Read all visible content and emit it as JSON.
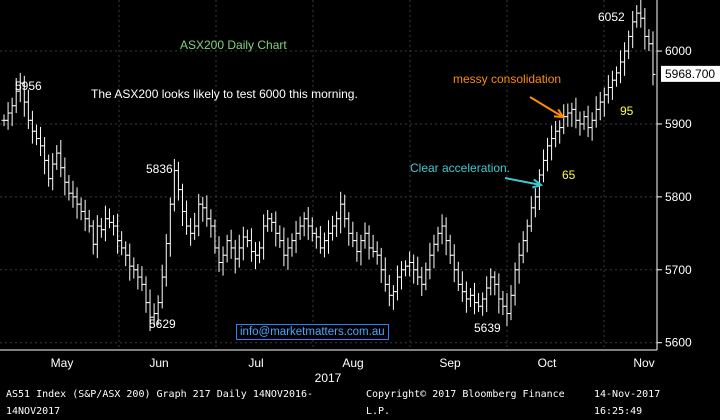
{
  "chart_data": {
    "type": "ohlc",
    "title": "ASX200 Daily Chart",
    "year_label": "2017",
    "ylim": [
      5590,
      6070
    ],
    "yticks": [
      5600,
      5700,
      5800,
      5900,
      6000
    ],
    "xticks": [
      "May",
      "Jun",
      "Jul",
      "Aug",
      "Sep",
      "Oct",
      "Nov"
    ],
    "last_price": "5968.700",
    "closes": [
      5905,
      5915,
      5925,
      5945,
      5956,
      5930,
      5905,
      5890,
      5880,
      5870,
      5850,
      5825,
      5845,
      5860,
      5840,
      5820,
      5805,
      5800,
      5790,
      5780,
      5770,
      5760,
      5735,
      5760,
      5755,
      5770,
      5765,
      5760,
      5740,
      5730,
      5720,
      5705,
      5700,
      5690,
      5680,
      5655,
      5635,
      5640,
      5655,
      5690,
      5736,
      5790,
      5836,
      5810,
      5780,
      5760,
      5750,
      5760,
      5790,
      5785,
      5770,
      5760,
      5730,
      5710,
      5720,
      5740,
      5730,
      5715,
      5730,
      5745,
      5740,
      5725,
      5720,
      5730,
      5760,
      5770,
      5765,
      5750,
      5740,
      5720,
      5730,
      5740,
      5750,
      5760,
      5770,
      5760,
      5750,
      5745,
      5730,
      5740,
      5750,
      5760,
      5770,
      5790,
      5770,
      5750,
      5740,
      5725,
      5740,
      5750,
      5730,
      5725,
      5720,
      5700,
      5680,
      5665,
      5670,
      5690,
      5700,
      5705,
      5710,
      5700,
      5690,
      5680,
      5700,
      5720,
      5735,
      5750,
      5760,
      5740,
      5720,
      5700,
      5680,
      5670,
      5660,
      5665,
      5655,
      5650,
      5660,
      5675,
      5690,
      5680,
      5660,
      5650,
      5640,
      5665,
      5700,
      5720,
      5740,
      5760,
      5785,
      5800,
      5830,
      5850,
      5870,
      5880,
      5890,
      5895,
      5910,
      5915,
      5920,
      5905,
      5900,
      5910,
      5895,
      5905,
      5920,
      5930,
      5940,
      5950,
      5960,
      5970,
      5985,
      6000,
      6020,
      6040,
      6052,
      6045,
      6020,
      6010,
      5968
    ],
    "annotations": {
      "label_5956": "5956",
      "label_5836": "5836",
      "label_5629": "5629",
      "label_5639": "5639",
      "label_6052": "6052",
      "label_65": "65",
      "label_95": "95",
      "commentary": "The ASX200 looks likely to test 6000 this morning.",
      "messy": "messy consolidation",
      "clear": "Clear acceleration.",
      "email": "info@marketmatters.com.au"
    },
    "colors": {
      "bars": "#ffffff",
      "grid": "#3a3a3a",
      "title": "#7fd47f",
      "orange": "#ff8c00",
      "cyan": "#3fc9d0",
      "yellow": "#ffff40",
      "email": "#4aa6ff"
    }
  },
  "footer": {
    "left": "AS51 Index (S&P/ASX 200) Graph 217  Daily 14NOV2016-14NOV2017",
    "center": "Copyright© 2017 Bloomberg Finance L.P.",
    "right": "14-Nov-2017 16:25:49"
  }
}
